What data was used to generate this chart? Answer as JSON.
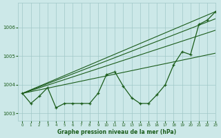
{
  "title": "Graphe pression niveau de la mer (hPa)",
  "bg_color": "#cce8e8",
  "line_color": "#1a5c1a",
  "grid_color": "#a0c8c8",
  "xlim": [
    -0.5,
    23
  ],
  "ylim": [
    1002.75,
    1006.85
  ],
  "yticks": [
    1003,
    1004,
    1005,
    1006
  ],
  "xticks": [
    0,
    1,
    2,
    3,
    4,
    5,
    6,
    7,
    8,
    9,
    10,
    11,
    12,
    13,
    14,
    15,
    16,
    17,
    18,
    19,
    20,
    21,
    22,
    23
  ],
  "straight_lines": [
    [
      [
        0,
        23
      ],
      [
        1003.7,
        1006.55
      ]
    ],
    [
      [
        0,
        23
      ],
      [
        1003.7,
        1006.3
      ]
    ],
    [
      [
        0,
        23
      ],
      [
        1003.7,
        1005.9
      ]
    ],
    [
      [
        0,
        23
      ],
      [
        1003.7,
        1005.1
      ]
    ]
  ],
  "main_series_x": [
    0,
    1,
    2,
    3,
    4,
    5,
    6,
    7,
    8,
    9,
    10,
    11,
    12,
    13,
    14,
    15,
    16,
    17,
    18,
    19,
    20,
    21,
    22,
    23
  ],
  "main_series_y": [
    1003.7,
    1003.35,
    1003.6,
    1003.9,
    1003.2,
    1003.35,
    1003.35,
    1003.35,
    1003.35,
    1003.7,
    1004.35,
    1004.45,
    1003.95,
    1003.55,
    1003.35,
    1003.35,
    1003.65,
    1004.0,
    1004.7,
    1005.15,
    1005.05,
    1006.1,
    1006.25,
    1006.55
  ]
}
